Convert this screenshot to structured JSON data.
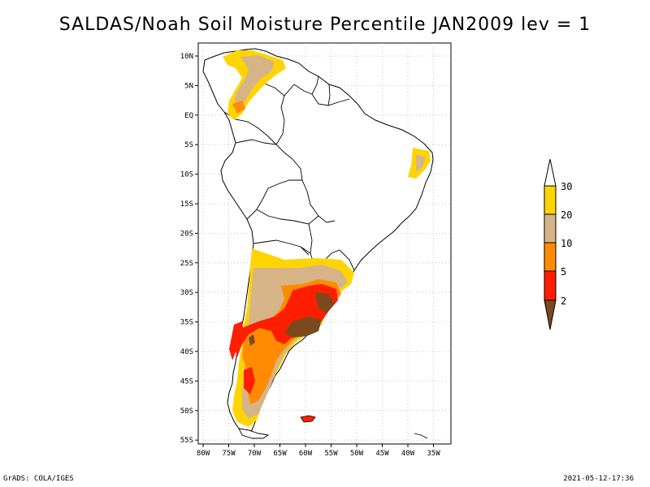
{
  "title": "SALDAS/Noah Soil Moisture Percentile JAN2009 lev = 1",
  "footer": {
    "left": "GrADS: COLA/IGES",
    "right": "2021-05-12-17:36"
  },
  "map": {
    "lat_labels": [
      "10N",
      "5N",
      "EQ",
      "5S",
      "10S",
      "15S",
      "20S",
      "25S",
      "30S",
      "35S",
      "40S",
      "45S",
      "50S",
      "55S"
    ],
    "lon_labels": [
      "80W",
      "75W",
      "70W",
      "65W",
      "60W",
      "55W",
      "50W",
      "45W",
      "40W",
      "35W"
    ]
  },
  "colorbar": {
    "labels": [
      "30",
      "20",
      "10",
      "5",
      "2"
    ],
    "colors": {
      "above30": "#ffffff",
      "c20_30": "#ffd400",
      "c10_20": "#d6b488",
      "c5_10": "#ff8c00",
      "c2_5": "#ff1e00",
      "below2": "#7a4a1e"
    }
  }
}
